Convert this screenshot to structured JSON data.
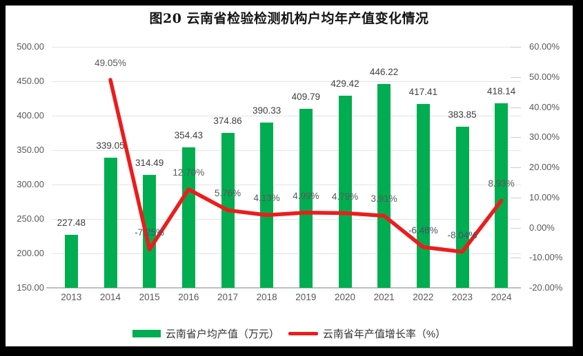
{
  "title": "图20 云南省检验检测机构户均年产值变化情况",
  "chart_data": {
    "type": "bar+line combo",
    "title": "图20 云南省检验检测机构户均年产值变化情况",
    "categories": [
      "2013",
      "2014",
      "2015",
      "2016",
      "2017",
      "2018",
      "2019",
      "2020",
      "2021",
      "2022",
      "2023",
      "2024"
    ],
    "series": [
      {
        "name": "云南省户均产值（万元）",
        "type": "bar",
        "axis": "left",
        "color": "#00ad50",
        "values": [
          227.48,
          339.05,
          314.49,
          354.43,
          374.86,
          390.33,
          409.79,
          429.42,
          446.22,
          417.41,
          383.85,
          418.14
        ],
        "labels": [
          "227.48",
          "339.05",
          "314.49",
          "354.43",
          "374.86",
          "390.33",
          "409.79",
          "429.42",
          "446.22",
          "417.41",
          "383.85",
          "418.14"
        ]
      },
      {
        "name": "云南省年产值增长率（%）",
        "type": "line",
        "axis": "right",
        "color": "#ed1c1c",
        "values": [
          null,
          49.05,
          -7.25,
          12.7,
          5.76,
          4.13,
          4.99,
          4.79,
          3.91,
          -6.46,
          -8.04,
          8.93
        ],
        "labels": [
          null,
          "49.05%",
          "-7.25%",
          "12.70%",
          "5.76%",
          "4.13%",
          "4.99%",
          "4.79%",
          "3.91%",
          "-6.46%",
          "-8.04%",
          "8.93%"
        ]
      }
    ],
    "left_axis": {
      "min": 150,
      "max": 500,
      "step": 50,
      "tick_labels": [
        "500.00",
        "450.00",
        "400.00",
        "350.00",
        "300.00",
        "250.00",
        "200.00",
        "150.00"
      ]
    },
    "right_axis": {
      "min": -20,
      "max": 60,
      "step": 10,
      "tick_labels": [
        "60.00%",
        "50.00%",
        "40.00%",
        "30.00%",
        "20.00%",
        "10.00%",
        "0.00%",
        "-10.00%",
        "-20.00%"
      ]
    },
    "grid": true,
    "legend_position": "bottom"
  },
  "legend": {
    "items": [
      {
        "label": "云南省户均产值（万元）",
        "swatch": "bar",
        "color": "#00ad50"
      },
      {
        "label": "云南省年产值增长率（%）",
        "swatch": "line",
        "color": "#ed1c1c"
      }
    ]
  },
  "styles": {
    "frame_color": "#000000",
    "background": "#ffffff",
    "grid_color": "#e3e3e3",
    "baseline_color": "#bfbfbf",
    "axis_text_color": "#595959",
    "bar_label_color": "#404040",
    "line_label_positive_color": "#595959",
    "line_label_negative_color": "#44546a"
  }
}
